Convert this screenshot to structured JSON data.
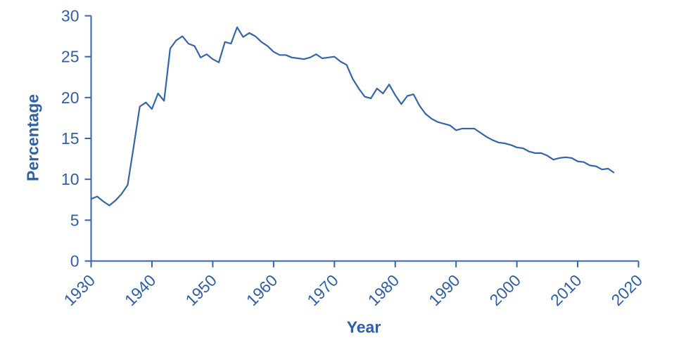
{
  "figure": {
    "background": "#ffffff"
  },
  "chart_data": {
    "type": "line",
    "title": "",
    "xlabel": "Year",
    "ylabel": "Percentage",
    "legend": "none",
    "grid": false,
    "xlim": [
      1930,
      2020
    ],
    "ylim": [
      0,
      30
    ],
    "x_ticks": [
      1930,
      1940,
      1950,
      1960,
      1970,
      1980,
      1990,
      2000,
      2010,
      2020
    ],
    "y_ticks": [
      0,
      5,
      10,
      15,
      20,
      25,
      30
    ],
    "line_color": "#3565ab",
    "axis_color": "#3565ab",
    "label_color": "#2e5fa8",
    "x": [
      1930,
      1931,
      1932,
      1933,
      1934,
      1935,
      1936,
      1937,
      1938,
      1939,
      1940,
      1941,
      1942,
      1943,
      1944,
      1945,
      1946,
      1947,
      1948,
      1949,
      1950,
      1951,
      1952,
      1953,
      1954,
      1955,
      1956,
      1957,
      1958,
      1959,
      1960,
      1961,
      1962,
      1963,
      1964,
      1965,
      1966,
      1967,
      1968,
      1969,
      1970,
      1971,
      1972,
      1973,
      1974,
      1975,
      1976,
      1977,
      1978,
      1979,
      1980,
      1981,
      1982,
      1983,
      1984,
      1985,
      1986,
      1987,
      1988,
      1989,
      1990,
      1991,
      1992,
      1993,
      1994,
      1995,
      1996,
      1997,
      1998,
      1999,
      2000,
      2001,
      2002,
      2003,
      2004,
      2005,
      2006,
      2007,
      2008,
      2009,
      2010,
      2011,
      2012,
      2013,
      2014,
      2015,
      2016
    ],
    "values": [
      7.6,
      7.9,
      7.3,
      6.8,
      7.4,
      8.2,
      9.3,
      14.0,
      18.9,
      19.4,
      18.6,
      20.5,
      19.6,
      26.0,
      27.0,
      27.5,
      26.6,
      26.3,
      24.9,
      25.3,
      24.7,
      24.3,
      26.8,
      26.6,
      28.6,
      27.4,
      27.9,
      27.5,
      26.8,
      26.3,
      25.6,
      25.2,
      25.2,
      24.9,
      24.8,
      24.7,
      24.9,
      25.3,
      24.8,
      24.9,
      25.0,
      24.4,
      24.0,
      22.3,
      21.1,
      20.1,
      19.9,
      21.1,
      20.5,
      21.6,
      20.3,
      19.2,
      20.2,
      20.4,
      19.0,
      18.0,
      17.4,
      17.0,
      16.8,
      16.6,
      16.0,
      16.2,
      16.2,
      16.2,
      15.7,
      15.2,
      14.8,
      14.5,
      14.4,
      14.2,
      13.9,
      13.8,
      13.4,
      13.2,
      13.2,
      12.9,
      12.4,
      12.6,
      12.7,
      12.6,
      12.2,
      12.1,
      11.7,
      11.6,
      11.2,
      11.3,
      10.8
    ]
  }
}
